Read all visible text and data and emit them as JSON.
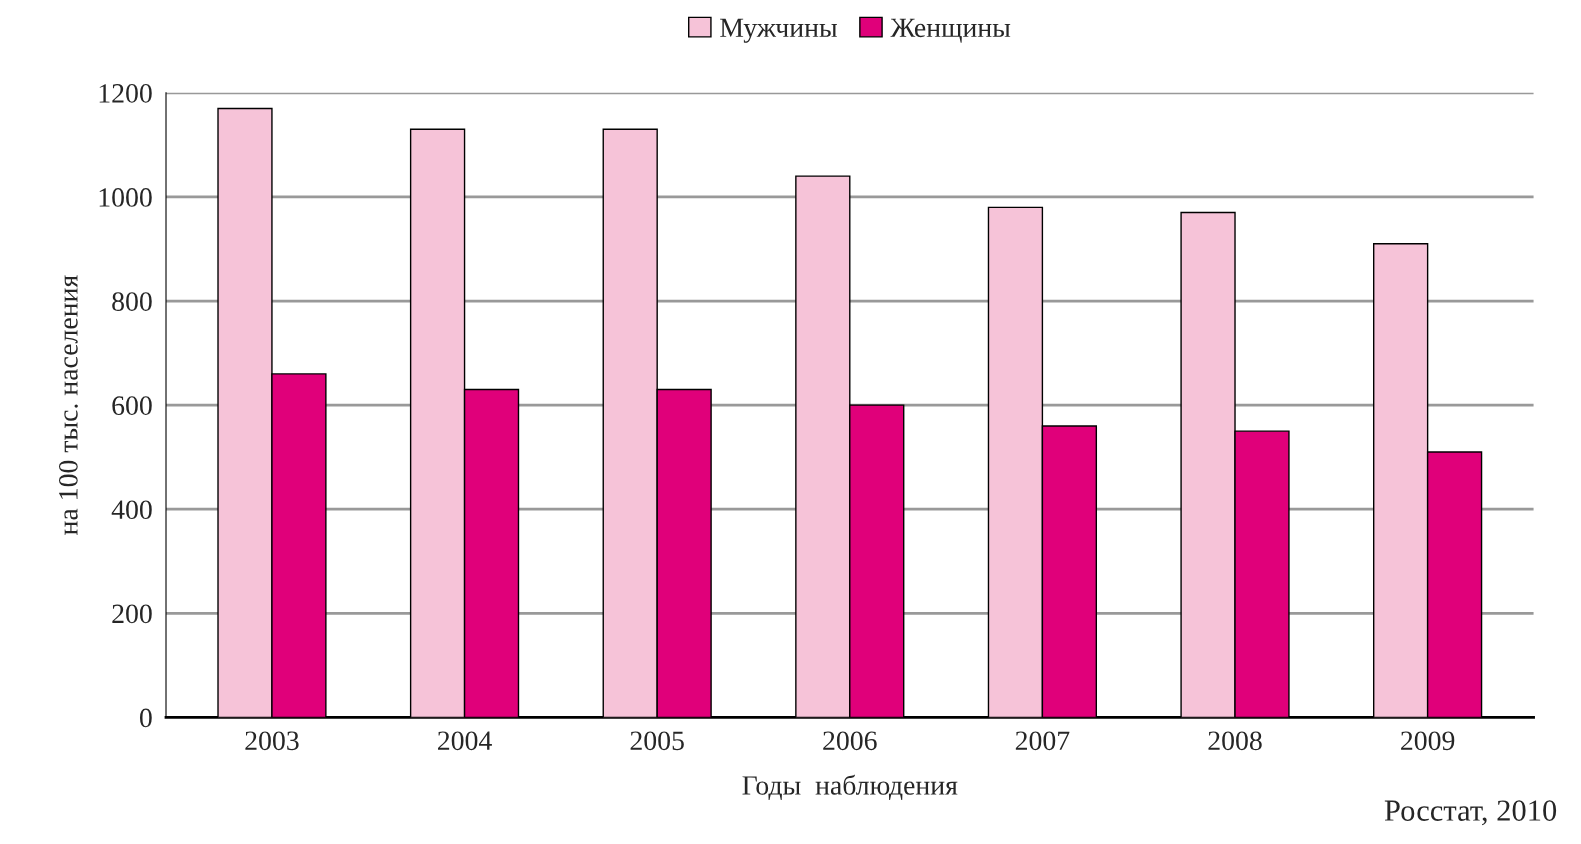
{
  "chart_data": {
    "type": "bar",
    "categories": [
      "2003",
      "2004",
      "2005",
      "2006",
      "2007",
      "2008",
      "2009"
    ],
    "series": [
      {
        "name": "Мужчины",
        "color": "#f6c3d8",
        "values": [
          1170,
          1130,
          1130,
          1040,
          980,
          970,
          910
        ]
      },
      {
        "name": "Женщины",
        "color": "#e0007a",
        "values": [
          660,
          630,
          630,
          600,
          560,
          550,
          510
        ]
      }
    ],
    "xlabel": "Годы  наблюдения",
    "ylabel": "на 100 тыс. населения",
    "ylim": [
      0,
      1200
    ],
    "yticks": [
      0,
      200,
      400,
      600,
      800,
      1000,
      1200
    ],
    "grid": "y",
    "legend": "top",
    "annotations": [
      "Росстат, 2010"
    ]
  }
}
